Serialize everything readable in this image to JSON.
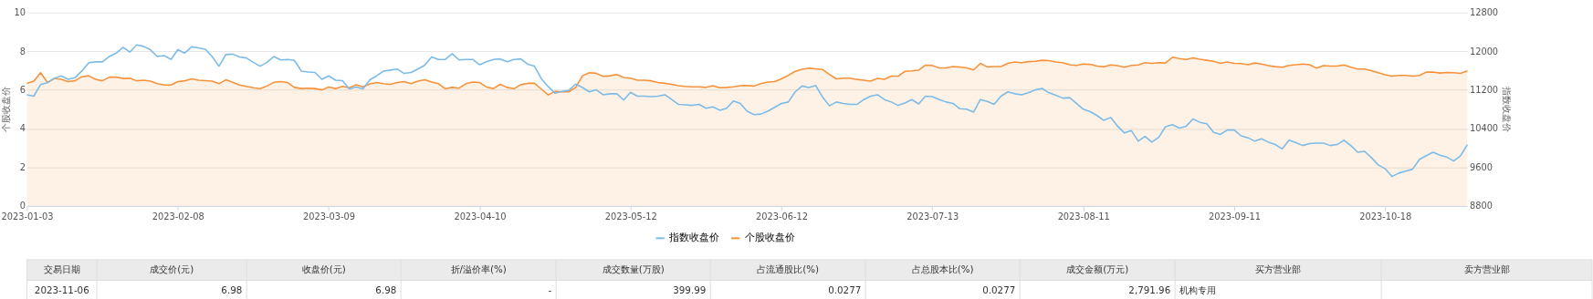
{
  "chart_data": {
    "type": "line",
    "categories": [
      "2023-01-03",
      null,
      null,
      null,
      null,
      null,
      null,
      null,
      null,
      null,
      null,
      null,
      null,
      null,
      null,
      null,
      null,
      null,
      null,
      null,
      null,
      null,
      "2023-02-08",
      null,
      null,
      null,
      null,
      null,
      null,
      null,
      null,
      null,
      null,
      null,
      null,
      null,
      null,
      null,
      null,
      null,
      null,
      null,
      null,
      null,
      "2023-03-09",
      null,
      null,
      null,
      null,
      null,
      null,
      null,
      null,
      null,
      null,
      null,
      null,
      null,
      null,
      null,
      null,
      null,
      null,
      null,
      null,
      null,
      "2023-04-10",
      null,
      null,
      null,
      null,
      null,
      null,
      null,
      null,
      null,
      null,
      null,
      null,
      null,
      null,
      null,
      null,
      null,
      null,
      null,
      null,
      null,
      "2023-05-12",
      null,
      null,
      null,
      null,
      null,
      null,
      null,
      null,
      null,
      null,
      null,
      null,
      null,
      null,
      null,
      null,
      null,
      null,
      null,
      null,
      null,
      "2023-06-12",
      null,
      null,
      null,
      null,
      null,
      null,
      null,
      null,
      null,
      null,
      null,
      null,
      null,
      null,
      null,
      null,
      null,
      null,
      null,
      null,
      null,
      "2023-07-13",
      null,
      null,
      null,
      null,
      null,
      null,
      null,
      null,
      null,
      null,
      null,
      null,
      null,
      null,
      null,
      null,
      null,
      null,
      null,
      null,
      null,
      "2023-08-11",
      null,
      null,
      null,
      null,
      null,
      null,
      null,
      null,
      null,
      null,
      null,
      null,
      null,
      null,
      null,
      null,
      null,
      null,
      null,
      null,
      null,
      "2023-09-11",
      null,
      null,
      null,
      null,
      null,
      null,
      null,
      null,
      null,
      null,
      null,
      null,
      null,
      null,
      null,
      null,
      null,
      null,
      null,
      null,
      null,
      "2023-10-18",
      null,
      null,
      null,
      null,
      null,
      null,
      null,
      null,
      null,
      null,
      null,
      null
    ],
    "series": [
      {
        "name": "指数收盘价",
        "type": "line",
        "axis": "y2",
        "color": "#7cbbe8",
        "values": [
          11100,
          11070,
          11310,
          11350,
          11440,
          11490,
          11420,
          11450,
          11590,
          11760,
          11780,
          11780,
          11890,
          11960,
          12080,
          11980,
          12130,
          12100,
          12030,
          11890,
          11910,
          11830,
          12030,
          11960,
          12090,
          12070,
          12040,
          11890,
          11690,
          11930,
          11940,
          11880,
          11860,
          11770,
          11690,
          11770,
          11890,
          11820,
          11830,
          11810,
          11590,
          11570,
          11560,
          11420,
          11490,
          11400,
          11390,
          11220,
          11260,
          11220,
          11410,
          11490,
          11590,
          11610,
          11630,
          11540,
          11560,
          11630,
          11710,
          11880,
          11830,
          11830,
          11950,
          11820,
          11830,
          11830,
          11720,
          11780,
          11830,
          11840,
          11780,
          11830,
          11840,
          11730,
          11690,
          11430,
          11270,
          11130,
          11170,
          11190,
          11320,
          11250,
          11160,
          11200,
          11100,
          11120,
          11120,
          10990,
          11150,
          11070,
          11070,
          11060,
          11070,
          11100,
          11000,
          10900,
          10890,
          10880,
          10900,
          10820,
          10850,
          10780,
          10820,
          10970,
          10920,
          10760,
          10690,
          10700,
          10760,
          10840,
          10920,
          10950,
          11160,
          11280,
          11250,
          11290,
          11050,
          10870,
          10950,
          10920,
          10900,
          10900,
          11000,
          11070,
          11100,
          11000,
          10950,
          10880,
          10930,
          11000,
          10910,
          11070,
          11060,
          11000,
          10950,
          10920,
          10810,
          10800,
          10740,
          11000,
          10960,
          10900,
          11070,
          11160,
          11120,
          11100,
          11140,
          11200,
          11230,
          11140,
          11090,
          11030,
          11040,
          10920,
          10800,
          10750,
          10670,
          10570,
          10630,
          10450,
          10310,
          10360,
          10140,
          10240,
          10120,
          10220,
          10440,
          10480,
          10410,
          10450,
          10600,
          10530,
          10500,
          10320,
          10280,
          10370,
          10370,
          10250,
          10210,
          10140,
          10190,
          10120,
          10070,
          9980,
          10160,
          10110,
          10050,
          10090,
          10100,
          10100,
          10050,
          10070,
          10160,
          10050,
          9910,
          9930,
          9800,
          9650,
          9570,
          9410,
          9480,
          9520,
          9560,
          9760,
          9840,
          9910,
          9850,
          9810,
          9730,
          9840,
          10070
        ]
      },
      {
        "name": "个股收盘价",
        "type": "area",
        "color": "#f7923a",
        "values": [
          6.34,
          6.45,
          6.89,
          6.38,
          6.59,
          6.55,
          6.43,
          6.47,
          6.68,
          6.73,
          6.55,
          6.47,
          6.66,
          6.66,
          6.59,
          6.61,
          6.47,
          6.5,
          6.45,
          6.32,
          6.25,
          6.25,
          6.43,
          6.47,
          6.57,
          6.5,
          6.48,
          6.45,
          6.32,
          6.52,
          6.39,
          6.25,
          6.18,
          6.11,
          6.06,
          6.2,
          6.39,
          6.43,
          6.38,
          6.13,
          6.07,
          6.09,
          6.07,
          6.0,
          6.15,
          6.07,
          6.18,
          6.11,
          6.27,
          6.16,
          6.31,
          6.38,
          6.32,
          6.29,
          6.38,
          6.43,
          6.32,
          6.45,
          6.52,
          6.41,
          6.32,
          6.06,
          6.13,
          6.09,
          6.32,
          6.41,
          6.38,
          6.15,
          6.07,
          6.29,
          6.13,
          6.06,
          6.27,
          6.34,
          6.34,
          6.04,
          5.74,
          5.93,
          5.9,
          5.9,
          6.13,
          6.73,
          6.89,
          6.86,
          6.7,
          6.73,
          6.79,
          6.64,
          6.61,
          6.5,
          6.5,
          6.47,
          6.38,
          6.34,
          6.29,
          6.22,
          6.18,
          6.16,
          6.16,
          6.13,
          6.22,
          6.11,
          6.13,
          6.16,
          6.22,
          6.23,
          6.2,
          6.32,
          6.41,
          6.43,
          6.57,
          6.75,
          6.96,
          7.07,
          7.12,
          7.09,
          7.05,
          6.8,
          6.57,
          6.61,
          6.61,
          6.54,
          6.5,
          6.45,
          6.59,
          6.55,
          6.71,
          6.71,
          6.96,
          6.98,
          7.02,
          7.28,
          7.26,
          7.14,
          7.14,
          7.21,
          7.18,
          7.14,
          7.03,
          7.37,
          7.19,
          7.21,
          7.21,
          7.37,
          7.44,
          7.41,
          7.46,
          7.48,
          7.53,
          7.51,
          7.44,
          7.41,
          7.3,
          7.27,
          7.34,
          7.32,
          7.23,
          7.2,
          7.29,
          7.25,
          7.17,
          7.27,
          7.29,
          7.41,
          7.37,
          7.41,
          7.39,
          7.69,
          7.62,
          7.57,
          7.65,
          7.58,
          7.53,
          7.48,
          7.37,
          7.44,
          7.37,
          7.36,
          7.3,
          7.39,
          7.34,
          7.25,
          7.2,
          7.17,
          7.27,
          7.3,
          7.34,
          7.3,
          7.13,
          7.25,
          7.23,
          7.23,
          7.29,
          7.17,
          7.08,
          7.08,
          6.99,
          6.89,
          6.78,
          6.71,
          6.75,
          6.75,
          6.71,
          6.75,
          6.92,
          6.92,
          6.87,
          6.9,
          6.89,
          6.85,
          6.98
        ]
      }
    ],
    "ylabel": "个股收盘价",
    "y2label": "指数收盘价",
    "ylim": [
      0,
      10
    ],
    "yticks": [
      0,
      2,
      4,
      6,
      8,
      10
    ],
    "y2lim": [
      8800,
      12800
    ],
    "y2ticks": [
      8800,
      9600,
      10400,
      11200,
      12000,
      12800
    ],
    "grid": "y",
    "legend": "bottom",
    "annotations": [
      "交易日期",
      "成交价(元)",
      "收盘价(元)",
      "折/溢价率(%)",
      "成交数量(万股)",
      "占流通股比(%)",
      "占总股本比(%)",
      "成交金额(万元)",
      "买方营业部",
      "卖方营业部",
      "2023-11-06",
      "6.98",
      "6.98",
      "-",
      "399.99",
      "0.0277",
      "0.0277",
      "2,791.96",
      "机构专用"
    ]
  }
}
